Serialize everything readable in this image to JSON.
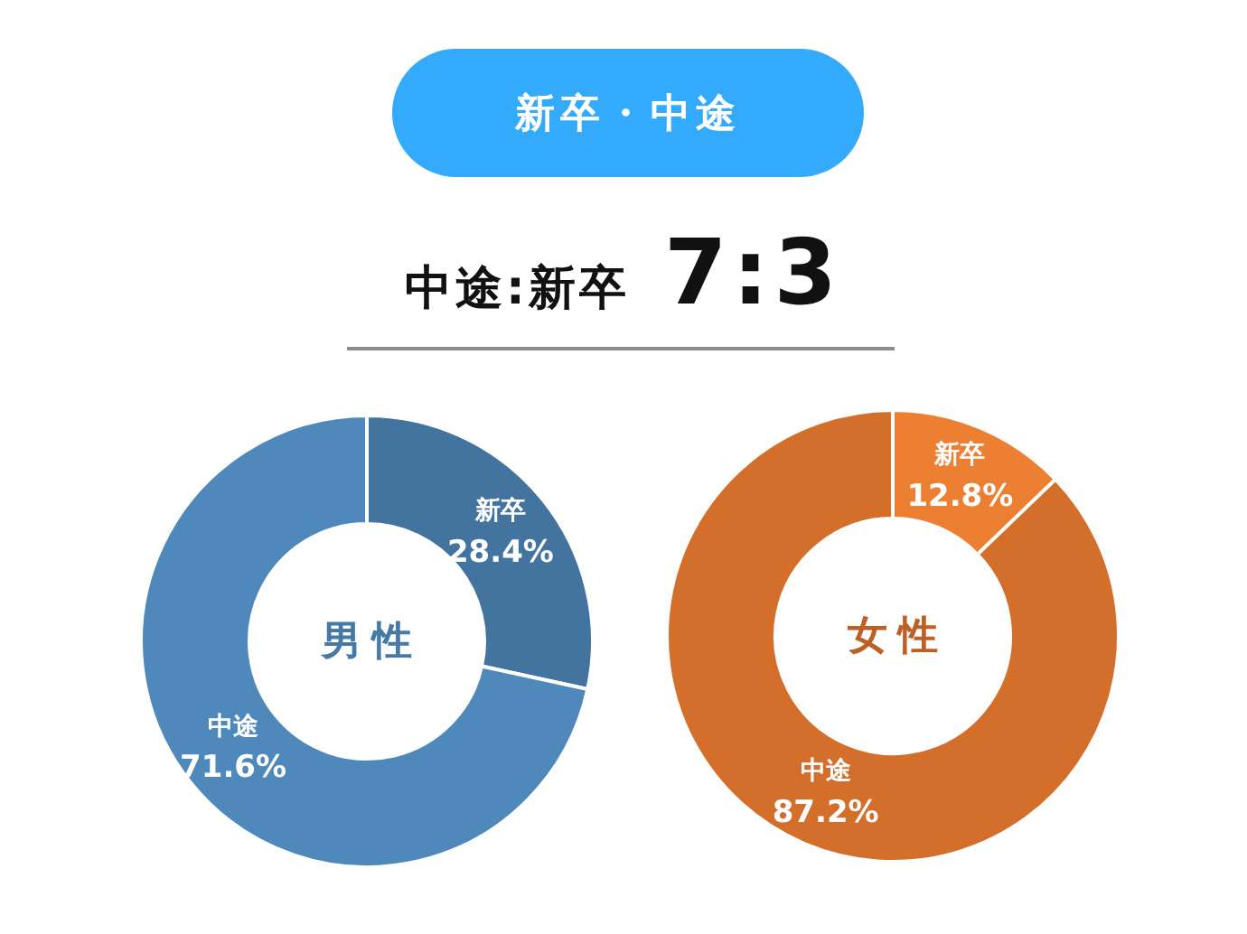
{
  "chart_data": [
    {
      "type": "other",
      "title": "新卒・中途",
      "subtitle": "中途:新卒 7:3"
    },
    {
      "type": "donut",
      "title": "男性",
      "categories": [
        "新卒",
        "中途"
      ],
      "values": [
        28.4,
        71.6
      ],
      "colors": [
        "#43739f",
        "#4f89bb"
      ],
      "value_labels": [
        "28.4%",
        "71.6%"
      ]
    },
    {
      "type": "donut",
      "title": "女性",
      "categories": [
        "新卒",
        "中途"
      ],
      "values": [
        12.8,
        87.2
      ],
      "colors": [
        "#ed7f33",
        "#d46e2b"
      ],
      "value_labels": [
        "12.8%",
        "87.2%"
      ]
    }
  ]
}
